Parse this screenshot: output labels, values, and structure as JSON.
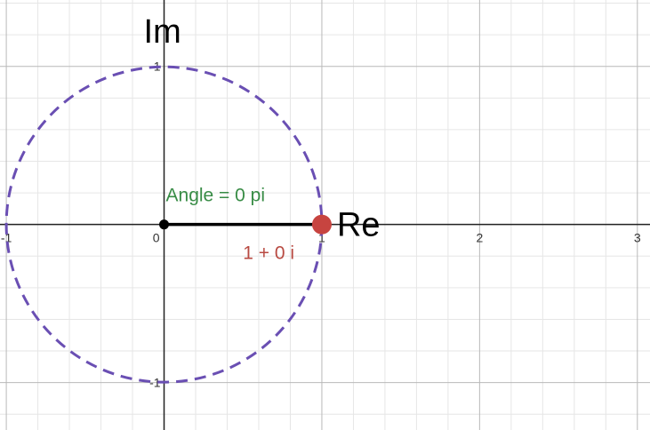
{
  "axes": {
    "x_name": "Re",
    "y_name": "Im",
    "x_ticks": [
      {
        "value": -1,
        "label": "-1"
      },
      {
        "value": 0,
        "label": "0"
      },
      {
        "value": 1,
        "label": "1"
      },
      {
        "value": 2,
        "label": "2"
      },
      {
        "value": 3,
        "label": "3"
      }
    ],
    "y_ticks": [
      {
        "value": 1,
        "label": "1"
      },
      {
        "value": -1,
        "label": "-1"
      }
    ],
    "x_range": [
      -1.04,
      3.08
    ],
    "y_range": [
      -1.3,
      1.42
    ],
    "minor_per_unit": 5,
    "grid": true
  },
  "unit_circle": {
    "center": [
      0,
      0
    ],
    "radius": 1,
    "color": "#6a4fb3",
    "style": "dashed"
  },
  "segment": {
    "from": [
      0,
      0
    ],
    "to": [
      1,
      0
    ],
    "color": "#000000"
  },
  "origin_point": {
    "x": 0,
    "y": 0,
    "color": "#000000"
  },
  "moving_point": {
    "x": 1,
    "y": 0,
    "color": "#c74440"
  },
  "angle_label": {
    "text": "Angle = 0 pi",
    "color": "#388c46"
  },
  "value_label": {
    "text": "1 + 0 i",
    "color": "#b84a42"
  }
}
